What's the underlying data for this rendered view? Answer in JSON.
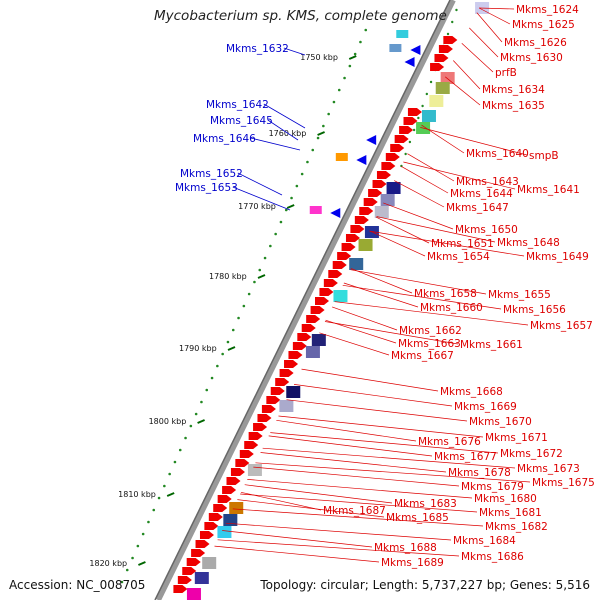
{
  "title": "Mycobacterium sp. KMS, complete genome",
  "footer": {
    "accession": "Accession: NC_008705",
    "topology": "Topology: circular; Length: 5,737,227 bp; Genes: 5,516"
  },
  "colors": {
    "forward_label": "#dd0000",
    "reverse_label": "#0000cc",
    "backbone": "#888888",
    "gc_dots": "#228822",
    "tick": "#006600"
  },
  "scale_ticks": [
    "1750 kbp",
    "1760 kbp",
    "1770 kbp",
    "1780 kbp",
    "1790 kbp",
    "1800 kbp",
    "1810 kbp",
    "1820 kbp"
  ],
  "reverse_labels": [
    "Mkms_1632",
    "Mkms_1642",
    "Mkms_1645",
    "Mkms_1646",
    "Mkms_1652",
    "Mkms_1653"
  ],
  "forward_labels": [
    "Mkms_1624",
    "Mkms_1625",
    "Mkms_1626",
    "Mkms_1630",
    "prfB",
    "Mkms_1634",
    "Mkms_1635",
    "Mkms_1640",
    "smpB",
    "Mkms_1643",
    "Mkms_1641",
    "Mkms_1644",
    "Mkms_1647",
    "Mkms_1650",
    "Mkms_1651",
    "Mkms_1648",
    "Mkms_1654",
    "Mkms_1649",
    "Mkms_1658",
    "Mkms_1655",
    "Mkms_1660",
    "Mkms_1656",
    "Mkms_1657",
    "Mkms_1662",
    "Mkms_1663",
    "Mkms_1661",
    "Mkms_1667",
    "Mkms_1668",
    "Mkms_1669",
    "Mkms_1670",
    "Mkms_1671",
    "Mkms_1676",
    "Mkms_1672",
    "Mkms_1677",
    "Mkms_1673",
    "Mkms_1678",
    "Mkms_1675",
    "Mkms_1679",
    "Mkms_1680",
    "Mkms_1683",
    "Mkms_1681",
    "Mkms_1687",
    "Mkms_1685",
    "Mkms_1682",
    "Mkms_1684",
    "Mkms_1688",
    "Mkms_1686",
    "Mkms_1689"
  ]
}
